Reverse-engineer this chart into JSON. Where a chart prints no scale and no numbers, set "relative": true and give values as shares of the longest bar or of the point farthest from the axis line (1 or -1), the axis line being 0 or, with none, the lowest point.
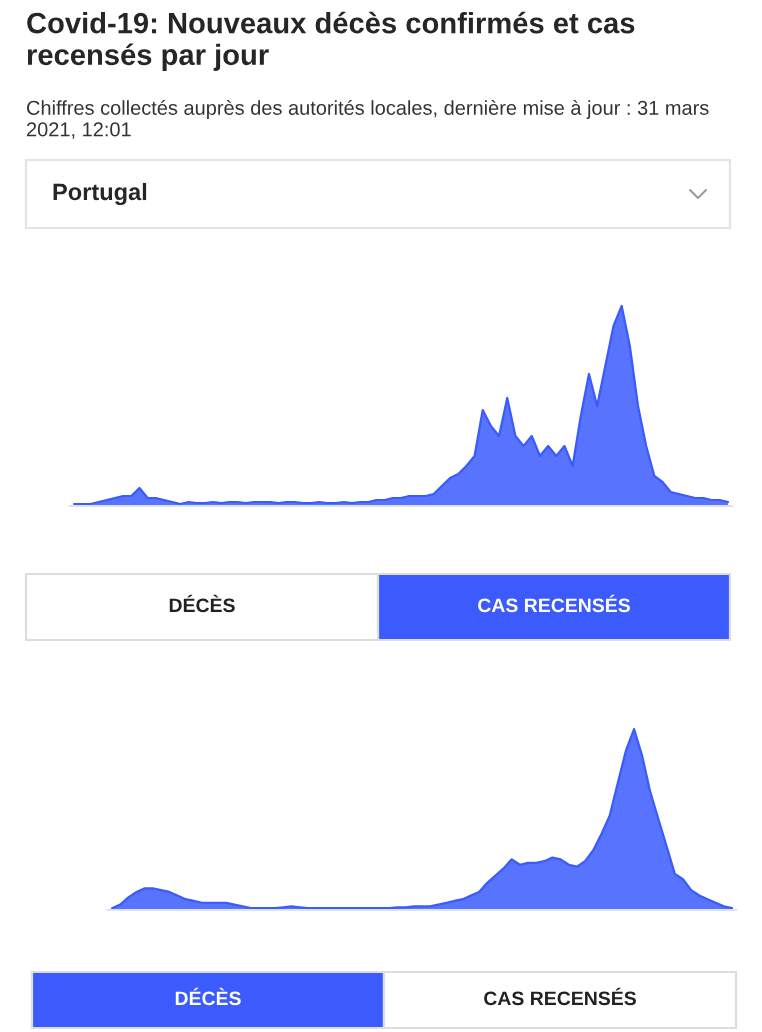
{
  "chart_data": [
    {
      "type": "area",
      "title": "Covid-19: Nouveaux décès confirmés et cas recensés par jour",
      "subtitle": "Chiffres collectés auprès des autorités locales, dernière mise à jour : 31 mars 2021, 12:01",
      "relative": true,
      "color": "#3b5bfd",
      "annotations": [
        "Portugal",
        "DÉCÈS",
        "CAS RECENSÉS"
      ],
      "categories": [
        null,
        null,
        null,
        null,
        null,
        null,
        null,
        null,
        null,
        null,
        null,
        null,
        null,
        null,
        null,
        null,
        null,
        null,
        null,
        null,
        null,
        null,
        null,
        null,
        null,
        null,
        null,
        null,
        null,
        null,
        null,
        null,
        null,
        null,
        null,
        null,
        null,
        null,
        null,
        null,
        null,
        null,
        null,
        null,
        null,
        null,
        null,
        null,
        null,
        null,
        null,
        null,
        null,
        null,
        null,
        null,
        null,
        null,
        null,
        null,
        null,
        null,
        null,
        null,
        null,
        null,
        null,
        null,
        null,
        null,
        null,
        null,
        null,
        null,
        null,
        null,
        null,
        null,
        null,
        null,
        null
      ],
      "values": [
        0.01,
        0.01,
        0.01,
        0.02,
        0.03,
        0.04,
        0.05,
        0.05,
        0.09,
        0.04,
        0.04,
        0.03,
        0.02,
        0.01,
        0.02,
        0.015,
        0.015,
        0.02,
        0.015,
        0.02,
        0.02,
        0.015,
        0.02,
        0.02,
        0.02,
        0.015,
        0.02,
        0.02,
        0.015,
        0.015,
        0.02,
        0.015,
        0.015,
        0.02,
        0.015,
        0.02,
        0.02,
        0.03,
        0.03,
        0.04,
        0.04,
        0.05,
        0.05,
        0.05,
        0.06,
        0.1,
        0.14,
        0.16,
        0.2,
        0.25,
        0.48,
        0.4,
        0.35,
        0.54,
        0.35,
        0.3,
        0.35,
        0.25,
        0.3,
        0.25,
        0.3,
        0.2,
        0.45,
        0.66,
        0.5,
        0.7,
        0.9,
        1.0,
        0.8,
        0.5,
        0.3,
        0.15,
        0.12,
        0.07,
        0.06,
        0.05,
        0.04,
        0.04,
        0.03,
        0.03,
        0.02
      ]
    },
    {
      "type": "area",
      "relative": true,
      "color": "#3b5bfd",
      "annotations": [
        "DÉCÈS",
        "CAS RECENSÉS"
      ],
      "categories": [
        null,
        null,
        null,
        null,
        null,
        null,
        null,
        null,
        null,
        null,
        null,
        null,
        null,
        null,
        null,
        null,
        null,
        null,
        null,
        null,
        null,
        null,
        null,
        null,
        null,
        null,
        null,
        null,
        null,
        null,
        null,
        null,
        null,
        null,
        null,
        null,
        null,
        null,
        null,
        null,
        null,
        null,
        null,
        null,
        null,
        null,
        null,
        null,
        null,
        null,
        null,
        null,
        null,
        null,
        null,
        null,
        null,
        null,
        null,
        null,
        null,
        null,
        null,
        null,
        null,
        null,
        null,
        null,
        null,
        null,
        null,
        null,
        null,
        null,
        null,
        null,
        null
      ],
      "values": [
        0.01,
        0.03,
        0.07,
        0.1,
        0.12,
        0.12,
        0.11,
        0.1,
        0.08,
        0.06,
        0.05,
        0.04,
        0.04,
        0.04,
        0.04,
        0.03,
        0.02,
        0.01,
        0.01,
        0.01,
        0.01,
        0.015,
        0.02,
        0.015,
        0.01,
        0.01,
        0.01,
        0.01,
        0.01,
        0.01,
        0.01,
        0.01,
        0.01,
        0.01,
        0.01,
        0.015,
        0.015,
        0.02,
        0.02,
        0.02,
        0.03,
        0.04,
        0.05,
        0.06,
        0.08,
        0.1,
        0.15,
        0.19,
        0.23,
        0.28,
        0.25,
        0.26,
        0.26,
        0.27,
        0.29,
        0.28,
        0.25,
        0.24,
        0.27,
        0.33,
        0.42,
        0.52,
        0.7,
        0.88,
        1.0,
        0.85,
        0.65,
        0.5,
        0.35,
        0.2,
        0.17,
        0.11,
        0.08,
        0.06,
        0.04,
        0.02,
        0.01
      ]
    }
  ]
}
